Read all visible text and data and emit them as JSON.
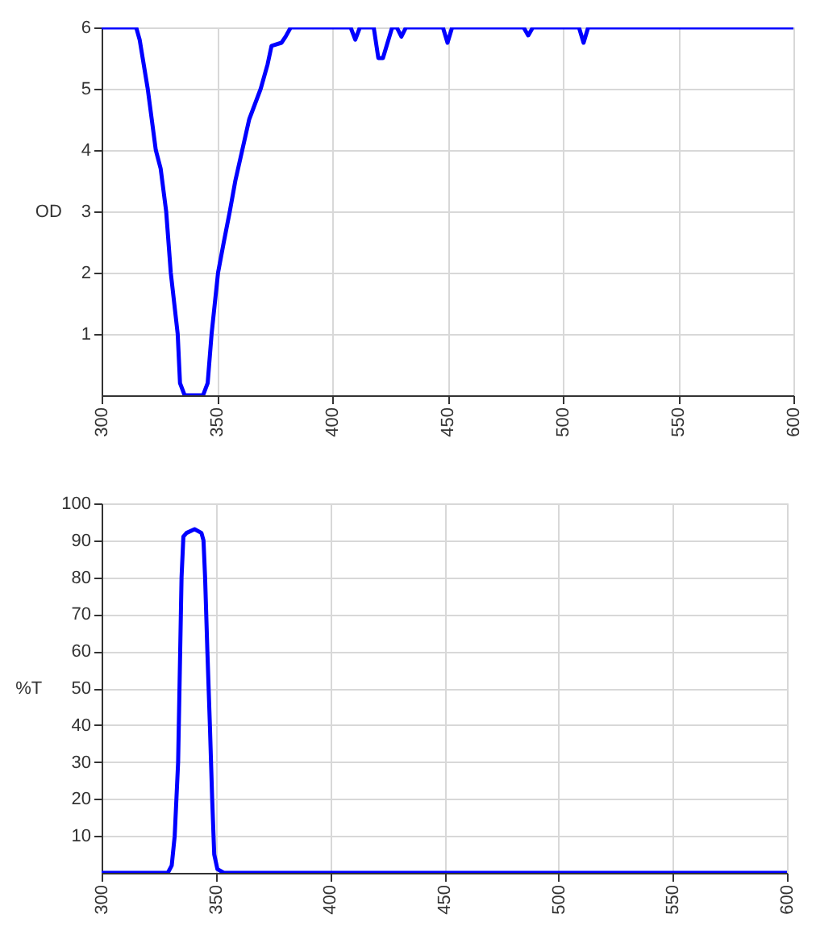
{
  "chart_data": [
    {
      "type": "line",
      "ylabel": "OD",
      "x": [
        300,
        315,
        316.5,
        320,
        323.5,
        325.6,
        328,
        330,
        333,
        334,
        336,
        344,
        346,
        347.7,
        350.5,
        353,
        355.6,
        358,
        361,
        364,
        369,
        372,
        373.7,
        378,
        379.8,
        382,
        408,
        410,
        412,
        418,
        420,
        422,
        426,
        428,
        430,
        432,
        448,
        450,
        452,
        483,
        485,
        487,
        507,
        509,
        511,
        600
      ],
      "series": [
        {
          "color": "#0000ff",
          "values": [
            6,
            6,
            5.8,
            5,
            4,
            3.7,
            3,
            2,
            1,
            0.2,
            0,
            0,
            0.2,
            1,
            2,
            2.5,
            3,
            3.5,
            4,
            4.5,
            5,
            5.4,
            5.7,
            5.75,
            5.85,
            6,
            6,
            5.8,
            6,
            6,
            5.5,
            5.5,
            6,
            6,
            5.85,
            6,
            6,
            5.75,
            6,
            6,
            5.87,
            6,
            6,
            5.75,
            6,
            6
          ]
        }
      ],
      "xlim": [
        300,
        600
      ],
      "xticks": [
        300,
        350,
        400,
        450,
        500,
        550,
        600
      ],
      "ylim": [
        0,
        6
      ],
      "yticks": [
        1,
        2,
        3,
        4,
        5,
        6
      ],
      "grid": true,
      "line_style": "solid"
    },
    {
      "type": "line",
      "ylabel": "%T",
      "x": [
        300,
        329,
        330.7,
        332,
        333.5,
        334.4,
        335,
        335.8,
        337.2,
        340.7,
        343.7,
        344.6,
        345.3,
        346.3,
        347.4,
        348.4,
        349.3,
        350.7,
        353.5,
        600
      ],
      "series": [
        {
          "color": "#0000ff",
          "values": [
            0,
            0,
            2,
            10,
            30,
            60,
            80,
            91,
            92,
            93,
            92,
            90,
            80,
            60,
            40,
            20,
            5,
            1,
            0,
            0
          ]
        }
      ],
      "xlim": [
        300,
        600
      ],
      "xticks": [
        300,
        350,
        400,
        450,
        500,
        550,
        600
      ],
      "ylim": [
        0,
        100
      ],
      "yticks": [
        10,
        20,
        30,
        40,
        50,
        60,
        70,
        80,
        90,
        100
      ],
      "grid": true,
      "line_style": "solid"
    }
  ]
}
